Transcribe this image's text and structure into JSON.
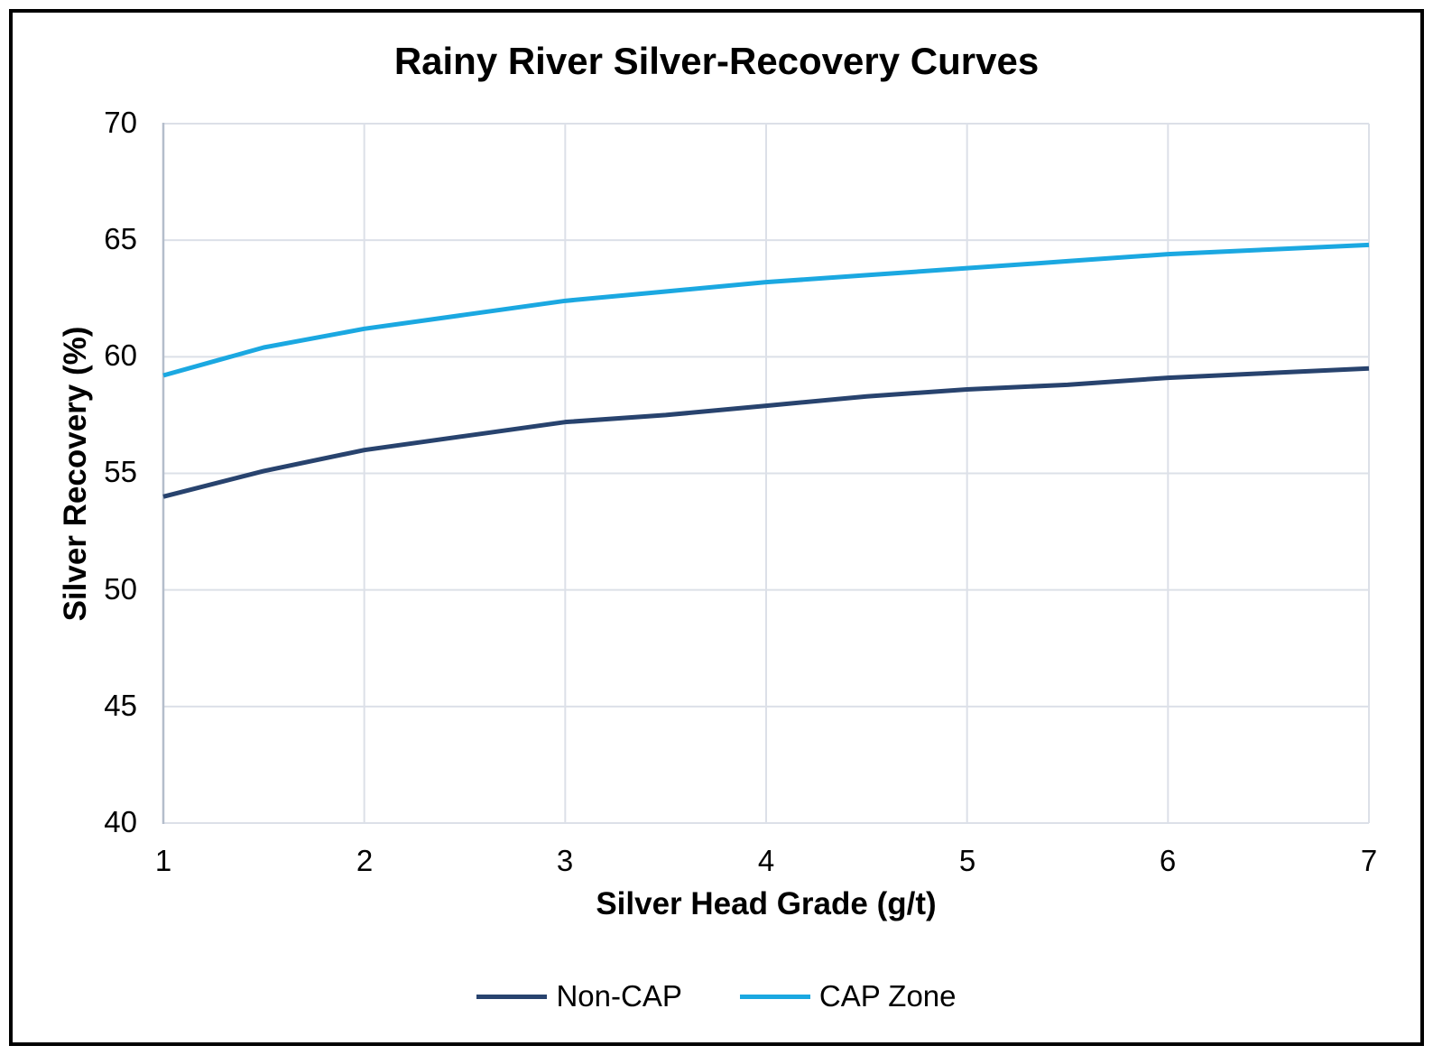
{
  "chart_data": {
    "type": "line",
    "title": "Rainy River Silver-Recovery Curves",
    "xlabel": "Silver Head Grade (g/t)",
    "ylabel": "Silver Recovery (%)",
    "xlim": [
      1,
      7
    ],
    "ylim": [
      40,
      70
    ],
    "xticks": [
      1,
      2,
      3,
      4,
      5,
      6,
      7
    ],
    "yticks": [
      70,
      65,
      60,
      55,
      50,
      45,
      40
    ],
    "grid": true,
    "legend_position": "bottom-center",
    "x": [
      1,
      1.5,
      2,
      2.5,
      3,
      3.5,
      4,
      4.5,
      5,
      5.5,
      6,
      6.5,
      7
    ],
    "series": [
      {
        "name": "Non-CAP",
        "color": "#28436E",
        "values": [
          54.0,
          55.1,
          56.0,
          56.6,
          57.2,
          57.5,
          57.9,
          58.3,
          58.6,
          58.8,
          59.1,
          59.3,
          59.5
        ]
      },
      {
        "name": "CAP Zone",
        "color": "#1BA8E1",
        "values": [
          59.2,
          60.4,
          61.2,
          61.8,
          62.4,
          62.8,
          63.2,
          63.5,
          63.8,
          64.1,
          64.4,
          64.6,
          64.8
        ]
      }
    ],
    "colors": {
      "gridline": "#DCE0E8",
      "axis_line": "#B4BDCB",
      "text": "#000000",
      "background": "#FFFFFF",
      "figure_border": "#000000"
    }
  }
}
